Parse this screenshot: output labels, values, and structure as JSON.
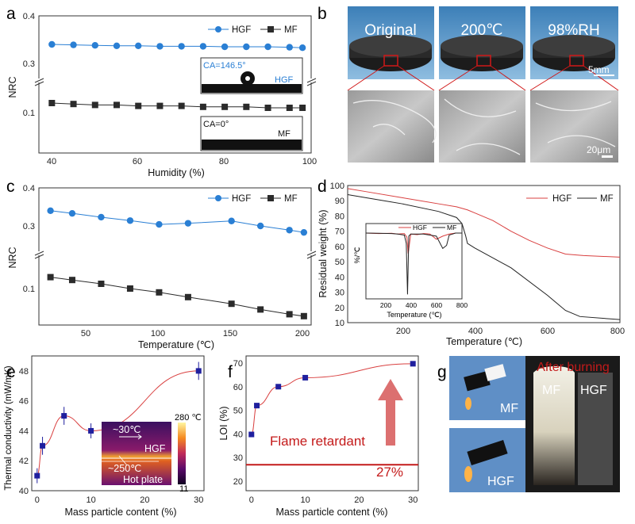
{
  "panels": {
    "a": {
      "label": "a",
      "xlabel": "Humidity (%)",
      "ylabel": "NRC",
      "ticks_x": [
        "40",
        "60",
        "80",
        "100"
      ],
      "ticks_y_top": [
        "0.4",
        "0.3"
      ],
      "ticks_y_bot": [
        "0.1"
      ],
      "inset_hgf_ca": "CA=146.5°",
      "inset_hgf_name": "HGF",
      "inset_mf_ca": "CA=0°",
      "inset_mf_name": "MF"
    },
    "b": {
      "label": "b",
      "titles": [
        "Original",
        "200℃",
        "98%RH"
      ],
      "scale_top": "5mm",
      "scale_bottom": "20μm"
    },
    "c": {
      "label": "c",
      "xlabel": "Temperature (℃)",
      "ylabel": "NRC",
      "ticks_x": [
        "50",
        "100",
        "150",
        "200"
      ],
      "ticks_y_top": [
        "0.4",
        "0.3"
      ],
      "ticks_y_bot": [
        "0.1"
      ]
    },
    "d": {
      "label": "d",
      "xlabel": "Temperature (℃)",
      "ylabel": "Residual weight (%)",
      "ticks_x": [
        "200",
        "400",
        "600",
        "800"
      ],
      "ticks_y": [
        "100",
        "90",
        "80",
        "70",
        "60",
        "50",
        "40",
        "30",
        "20",
        "10"
      ],
      "inset_ylabel": "%/℃",
      "inset_xlabel": "Temperature (℃)",
      "inset_ticks_x": [
        "200",
        "400",
        "600",
        "800"
      ]
    },
    "e": {
      "label": "e",
      "xlabel": "Mass particle content (%)",
      "ylabel": "Thermal conductivity (mW/mK)",
      "ticks_x": [
        "0",
        "10",
        "20",
        "30"
      ],
      "ticks_y": [
        "40",
        "42",
        "44",
        "46",
        "48"
      ],
      "inset": {
        "t_hot": "~30℃",
        "name": "HGF",
        "t_plate": "~250℃",
        "plate": "Hot plate",
        "scale_max": "280 ℃",
        "scale_min": "11"
      }
    },
    "f": {
      "label": "f",
      "xlabel": "Mass particle content (%)",
      "ylabel": "LOI (%)",
      "ticks_x": [
        "0",
        "10",
        "20",
        "30"
      ],
      "ticks_y": [
        "20",
        "30",
        "40",
        "50",
        "60",
        "70"
      ],
      "annotation": "Flame retardant",
      "threshold_label": "27%"
    },
    "g": {
      "label": "g",
      "title": "After burning",
      "mf": "MF",
      "hgf": "HGF"
    }
  },
  "legend": {
    "hgf": "HGF",
    "mf": "MF"
  },
  "colors": {
    "hgf": "#2a7fd4",
    "mf": "#2b2b2b",
    "tga_hgf": "#d94040",
    "tga_mf": "#222222",
    "series_e": "#1f1f9e",
    "red": "#c41a1a"
  },
  "chart_data": [
    {
      "id": "a",
      "type": "line",
      "title": "",
      "xlabel": "Humidity (%)",
      "ylabel": "NRC",
      "xlim": [
        37,
        100
      ],
      "ylim": [
        0.05,
        0.4
      ],
      "y_break": [
        0.12,
        0.27
      ],
      "series": [
        {
          "name": "HGF",
          "x": [
            40,
            45,
            50,
            55,
            60,
            65,
            70,
            75,
            80,
            85,
            90,
            95,
            98
          ],
          "values": [
            0.34,
            0.339,
            0.338,
            0.337,
            0.337,
            0.336,
            0.336,
            0.336,
            0.335,
            0.335,
            0.335,
            0.334,
            0.333
          ]
        },
        {
          "name": "MF",
          "x": [
            40,
            45,
            50,
            55,
            60,
            65,
            70,
            75,
            80,
            85,
            90,
            95,
            98
          ],
          "values": [
            0.11,
            0.109,
            0.108,
            0.108,
            0.107,
            0.107,
            0.107,
            0.106,
            0.106,
            0.106,
            0.105,
            0.105,
            0.105
          ]
        }
      ]
    },
    {
      "id": "c",
      "type": "line",
      "title": "",
      "xlabel": "Temperature (℃)",
      "ylabel": "NRC",
      "xlim": [
        17,
        205
      ],
      "ylim": [
        0.05,
        0.4
      ],
      "y_break": [
        0.13,
        0.27
      ],
      "series": [
        {
          "name": "HGF",
          "x": [
            25,
            40,
            60,
            80,
            100,
            120,
            150,
            170,
            190,
            200
          ],
          "values": [
            0.34,
            0.333,
            0.323,
            0.314,
            0.304,
            0.307,
            0.313,
            0.3,
            0.289,
            0.283
          ]
        },
        {
          "name": "MF",
          "x": [
            25,
            40,
            60,
            80,
            100,
            120,
            150,
            170,
            190,
            200
          ],
          "values": [
            0.112,
            0.109,
            0.105,
            0.1,
            0.096,
            0.091,
            0.084,
            0.078,
            0.073,
            0.071
          ]
        }
      ]
    },
    {
      "id": "d",
      "type": "line",
      "title": "",
      "xlabel": "Temperature (℃)",
      "ylabel": "Residual weight (%)",
      "xlim": [
        50,
        800
      ],
      "ylim": [
        10,
        100
      ],
      "series": [
        {
          "name": "HGF",
          "x": [
            50,
            100,
            200,
            300,
            350,
            380,
            400,
            450,
            500,
            550,
            600,
            650,
            700,
            800
          ],
          "values": [
            98,
            96,
            92,
            88,
            86,
            84,
            82,
            77,
            70,
            64,
            59,
            55,
            54,
            53
          ]
        },
        {
          "name": "MF",
          "x": [
            50,
            100,
            200,
            300,
            350,
            365,
            375,
            380,
            400,
            500,
            600,
            650,
            690,
            800
          ],
          "values": [
            94,
            92,
            88,
            83,
            79,
            75,
            67,
            62,
            59,
            46,
            28,
            18,
            14,
            12
          ]
        }
      ],
      "inset": {
        "xlabel": "Temperature (℃)",
        "ylabel": "%/℃",
        "xlim": [
          50,
          800
        ],
        "series": [
          {
            "name": "HGF",
            "x": [
              50,
              150,
              250,
              300,
              350,
              370,
              380,
              400,
              450,
              500,
              550,
              600,
              650,
              700,
              750,
              800
            ],
            "values": [
              0,
              -0.05,
              -0.02,
              -0.1,
              -0.05,
              -0.4,
              -2.0,
              -0.1,
              -0.15,
              -0.05,
              -0.1,
              -0.6,
              -0.3,
              -0.1,
              0,
              0
            ]
          },
          {
            "name": "MF",
            "x": [
              50,
              150,
              250,
              300,
              350,
              365,
              375,
              385,
              400,
              500,
              600,
              650,
              680,
              700,
              750,
              800
            ],
            "values": [
              0,
              -0.02,
              -0.05,
              -0.1,
              -0.2,
              -1.0,
              -6.0,
              -0.3,
              -0.1,
              -0.1,
              -0.3,
              -1.5,
              -1.2,
              -0.2,
              0,
              0
            ]
          }
        ]
      }
    },
    {
      "id": "e",
      "type": "scatter",
      "title": "",
      "xlabel": "Mass particle content (%)",
      "ylabel": "Thermal conductivity (mW/mK)",
      "xlim": [
        -1,
        31
      ],
      "ylim": [
        40,
        49
      ],
      "series": [
        {
          "name": "Thermal conductivity",
          "x": [
            0,
            1,
            5,
            10,
            30
          ],
          "values": [
            41.0,
            43.0,
            45.0,
            44.0,
            48.0
          ],
          "errors": [
            0.5,
            0.6,
            0.6,
            0.5,
            0.6
          ]
        }
      ]
    },
    {
      "id": "f",
      "type": "scatter",
      "title": "",
      "xlabel": "Mass particle content (%)",
      "ylabel": "LOI (%)",
      "xlim": [
        -1,
        31
      ],
      "ylim": [
        16,
        73
      ],
      "threshold": 27,
      "series": [
        {
          "name": "LOI",
          "x": [
            0,
            1,
            5,
            10,
            30
          ],
          "values": [
            39.8,
            52.0,
            60.0,
            63.8,
            69.7
          ]
        }
      ]
    }
  ]
}
